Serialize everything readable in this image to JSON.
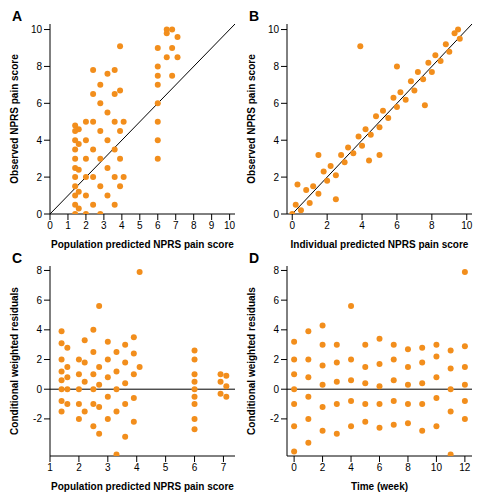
{
  "chart_data": [
    {
      "type": "scatter",
      "title": "A",
      "x_label": "Population predicted NPRS pain score",
      "y_label": "Observed NPRS pain score",
      "xlim": [
        0,
        10.3
      ],
      "ylim": [
        0,
        10.3
      ],
      "xticks": [
        0,
        1,
        2,
        3,
        4,
        5,
        6,
        7,
        8,
        9,
        10
      ],
      "yticks": [
        0,
        2,
        4,
        6,
        8,
        10
      ],
      "grid": false,
      "series": [
        {
          "type": "scatter",
          "color": "#f28e1c",
          "marker": "circle",
          "x": [
            1.4,
            1.4,
            1.4,
            1.4,
            1.4,
            1.4,
            1.4,
            1.4,
            1.4,
            1.4,
            1.4,
            1.6,
            1.6,
            1.6,
            1.6,
            1.6,
            2.0,
            2.0,
            2.0,
            2.0,
            2.0,
            2.0,
            2.4,
            2.4,
            2.4,
            2.4,
            2.4,
            2.4,
            2.8,
            2.8,
            2.8,
            2.8,
            2.8,
            2.8,
            3.2,
            3.2,
            3.2,
            3.2,
            3.2,
            3.6,
            3.6,
            3.6,
            3.6,
            3.6,
            3.6,
            3.9,
            3.9,
            3.9,
            3.9,
            3.9,
            4.1,
            4.1,
            6.0,
            6.0,
            6.0,
            6.0,
            6.0,
            6.0,
            6.0,
            6.0,
            6.5,
            6.5,
            6.5,
            6.8,
            6.8,
            6.8,
            7.1,
            7.1
          ],
          "values": [
            0,
            0.5,
            1,
            1.5,
            2,
            2.5,
            3,
            3.5,
            4,
            4.5,
            4.8,
            0.3,
            1.2,
            2.4,
            3.8,
            4.6,
            0,
            1,
            2,
            3,
            4,
            5,
            0.5,
            2,
            3.5,
            5,
            6.5,
            7.8,
            0,
            1.5,
            3,
            4.5,
            6,
            7,
            1,
            2.5,
            4,
            5.5,
            7.6,
            0.5,
            2,
            3.5,
            5,
            6.5,
            7.8,
            1.5,
            3,
            4.5,
            6.7,
            9.1,
            2,
            5,
            3,
            4,
            5,
            6,
            7,
            7.5,
            8,
            9,
            8.5,
            9.8,
            10,
            7.5,
            9,
            10,
            8.5,
            9.6
          ]
        },
        {
          "type": "line",
          "color": "#000000",
          "x": [
            0,
            10.3
          ],
          "values": [
            0,
            10.3
          ]
        }
      ]
    },
    {
      "type": "scatter",
      "title": "B",
      "x_label": "Individual predicted NPRS pain score",
      "y_label": "Observed NPRS pain score",
      "xlim": [
        -0.3,
        10.3
      ],
      "ylim": [
        0,
        10.3
      ],
      "xticks": [
        0,
        2,
        4,
        6,
        8,
        10
      ],
      "yticks": [
        0,
        2,
        4,
        6,
        8,
        10
      ],
      "grid": false,
      "series": [
        {
          "type": "scatter",
          "color": "#f28e1c",
          "marker": "circle",
          "x": [
            0,
            0.2,
            0.5,
            0.8,
            1,
            1.2,
            1.5,
            1.8,
            2,
            2.2,
            2.5,
            2.8,
            3,
            3.2,
            3.5,
            3.8,
            4,
            4.2,
            4.5,
            4.8,
            5,
            5.2,
            5.5,
            5.8,
            6,
            6.2,
            6.5,
            6.8,
            7,
            7.2,
            7.5,
            7.8,
            8,
            8.2,
            8.5,
            8.8,
            9,
            9.3,
            9.6,
            3.9,
            1.5,
            2.5,
            5,
            6,
            0.3,
            4.4,
            7.6,
            9.5
          ],
          "values": [
            0,
            0.5,
            0.2,
            1.3,
            0.6,
            1.5,
            1.1,
            2.3,
            1.8,
            2.6,
            2.1,
            3.2,
            2.8,
            3.6,
            3.3,
            4.2,
            3.7,
            4.6,
            4.3,
            5.3,
            4.7,
            5.6,
            5.2,
            6.3,
            5.8,
            6.6,
            6.2,
            7.2,
            6.7,
            7.7,
            7.3,
            8.2,
            7.7,
            8.6,
            8.3,
            9.2,
            8.8,
            9.8,
            9.5,
            9.1,
            3.2,
            0.8,
            3.2,
            8,
            1.6,
            2.9,
            5.9,
            10
          ]
        },
        {
          "type": "line",
          "color": "#000000",
          "x": [
            0,
            10.3
          ],
          "values": [
            0,
            10.3
          ]
        }
      ]
    },
    {
      "type": "scatter",
      "title": "C",
      "x_label": "Population predicted NPRS pain score",
      "y_label": "Conditional weighted residuals",
      "xlim": [
        1,
        7.4
      ],
      "ylim": [
        -4.5,
        8.3
      ],
      "xticks": [
        1,
        2,
        3,
        4,
        5,
        6,
        7
      ],
      "yticks": [
        -2,
        0,
        2,
        4,
        6,
        8
      ],
      "grid": false,
      "series": [
        {
          "type": "scatter",
          "color": "#f28e1c",
          "marker": "circle",
          "x": [
            1.4,
            1.4,
            1.4,
            1.4,
            1.4,
            1.4,
            1.4,
            1.4,
            1.6,
            1.6,
            1.6,
            1.6,
            1.6,
            2.0,
            2.0,
            2.0,
            2.0,
            2.0,
            2.2,
            2.2,
            2.2,
            2.2,
            2.5,
            2.5,
            2.5,
            2.5,
            2.5,
            2.5,
            2.7,
            2.7,
            2.7,
            2.7,
            2.7,
            3.0,
            3.0,
            3.0,
            3.0,
            3.0,
            3.3,
            3.3,
            3.3,
            3.3,
            3.3,
            3.6,
            3.6,
            3.6,
            3.6,
            3.6,
            3.9,
            3.9,
            3.9,
            3.9,
            3.9,
            4.1,
            4.1,
            6.0,
            6.0,
            6.0,
            6.0,
            6.0,
            6.0,
            6.0,
            6.0,
            6.0,
            6.9,
            6.9,
            6.9,
            7.1,
            7.1,
            7.1
          ],
          "values": [
            -1.5,
            -0.8,
            0,
            0.6,
            1.2,
            2,
            3.1,
            3.9,
            -1,
            0,
            0.8,
            1.5,
            2.8,
            -2,
            -1,
            0,
            1,
            2,
            -1.5,
            0.5,
            1.8,
            3.3,
            -2.5,
            -1,
            0,
            1,
            2.5,
            4,
            -3,
            -1.2,
            0.3,
            1.5,
            5.6,
            -2,
            -0.5,
            0.8,
            2,
            3.2,
            -4.4,
            -1.5,
            0,
            1.2,
            2.5,
            -3.2,
            -1,
            0.4,
            1.8,
            3,
            -2.2,
            -0.6,
            1,
            2.4,
            3.5,
            7.9,
            1.5,
            -2.7,
            -2,
            -1,
            -0.5,
            0,
            0.5,
            1,
            2,
            2.6,
            -0.3,
            0.5,
            1,
            -0.5,
            0.2,
            0.9
          ]
        },
        {
          "type": "line",
          "color": "#000000",
          "x": [
            1,
            7.4
          ],
          "values": [
            0,
            0
          ]
        }
      ]
    },
    {
      "type": "scatter",
      "title": "D",
      "x_label": "Time (week)",
      "y_label": "Conditional weighted residuals",
      "xlim": [
        -0.5,
        12.5
      ],
      "ylim": [
        -4.5,
        8.3
      ],
      "xticks": [
        0,
        2,
        4,
        6,
        8,
        10,
        12
      ],
      "yticks": [
        -2,
        0,
        2,
        4,
        6,
        8
      ],
      "grid": false,
      "series": [
        {
          "type": "scatter",
          "color": "#f28e1c",
          "marker": "circle",
          "x": [
            0,
            0,
            0,
            0,
            0,
            0,
            0,
            1,
            1,
            1,
            1,
            1,
            1,
            2,
            2,
            2,
            2,
            2,
            2,
            3,
            3,
            3,
            3,
            3,
            4,
            4,
            4,
            4,
            4,
            5,
            5,
            5,
            5,
            5,
            6,
            6,
            6,
            6,
            6,
            7,
            7,
            7,
            7,
            7,
            8,
            8,
            8,
            8,
            8,
            9,
            9,
            9,
            9,
            9,
            10,
            10,
            10,
            10,
            10,
            11,
            11,
            11,
            11,
            11,
            12,
            12,
            12,
            12,
            12,
            12
          ],
          "values": [
            -4.2,
            -2.5,
            -1,
            0,
            1,
            2,
            3.2,
            -3.6,
            -2,
            -0.5,
            0.8,
            2,
            3.9,
            -2.8,
            -1.2,
            0.3,
            1.6,
            3,
            4.3,
            -3,
            -1,
            0.5,
            1.8,
            3,
            -2.5,
            -0.8,
            0.6,
            2,
            5.6,
            -2.2,
            -1,
            0.4,
            1.5,
            3,
            -2.6,
            -1,
            0.2,
            1.7,
            3.4,
            -2.4,
            -0.8,
            0.6,
            2,
            3,
            -2.3,
            -1,
            0.3,
            1.5,
            2.7,
            -2.8,
            -1,
            0.4,
            1.8,
            2.8,
            -2.5,
            -0.6,
            0.8,
            2.2,
            3,
            -4.4,
            -1.5,
            0,
            1.4,
            2.6,
            -2,
            -0.8,
            0.3,
            1.5,
            2.9,
            7.9
          ]
        },
        {
          "type": "line",
          "color": "#000000",
          "x": [
            -0.5,
            12.5
          ],
          "values": [
            0,
            0
          ]
        }
      ]
    }
  ]
}
